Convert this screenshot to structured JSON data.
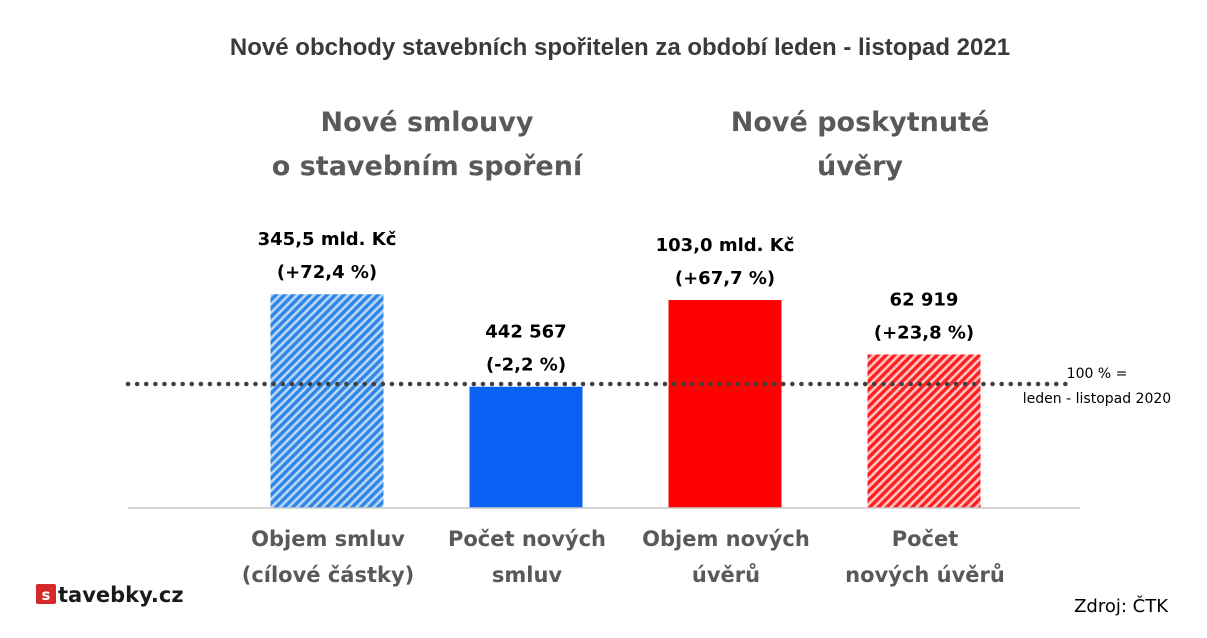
{
  "chart_data": {
    "type": "bar",
    "title": "Nové obchody stavebních spořitelen za období leden - listopad 2021",
    "groups": [
      {
        "lines": [
          "Nové smlouvy",
          "o stavebním spoření"
        ]
      },
      {
        "lines": [
          "Nové poskytnuté",
          "úvěry"
        ]
      }
    ],
    "categories": [
      {
        "lines": [
          "Objem smluv",
          "(cílové částky)"
        ]
      },
      {
        "lines": [
          "Počet  nových",
          "smluv"
        ]
      },
      {
        "lines": [
          "Objem nových",
          "úvěrů"
        ]
      },
      {
        "lines": [
          "Počet",
          "nových úvěrů"
        ]
      }
    ],
    "index_values": [
      172.4,
      97.8,
      167.7,
      123.8
    ],
    "labels": [
      {
        "value": "345,5 mld. Kč",
        "change": "(+72,4 %)"
      },
      {
        "value": "442 567",
        "change": "(-2,2 %)"
      },
      {
        "value": "103,0 mld. Kč",
        "change": "(+67,7 %)"
      },
      {
        "value": "62 919",
        "change": "(+23,8 %)"
      }
    ],
    "colors": [
      "#3d8fe8",
      "#0a62f5",
      "#ff0000",
      "#ff2a2a"
    ],
    "patterns": [
      "hatch",
      "solid",
      "solid",
      "hatch"
    ],
    "reference_line": {
      "value": 100,
      "lines": [
        "100 % =",
        "leden - listopad 2020"
      ]
    },
    "source": "Zdroj: ČTK",
    "logo": {
      "badge": "s",
      "text": "tavebky.cz"
    }
  }
}
